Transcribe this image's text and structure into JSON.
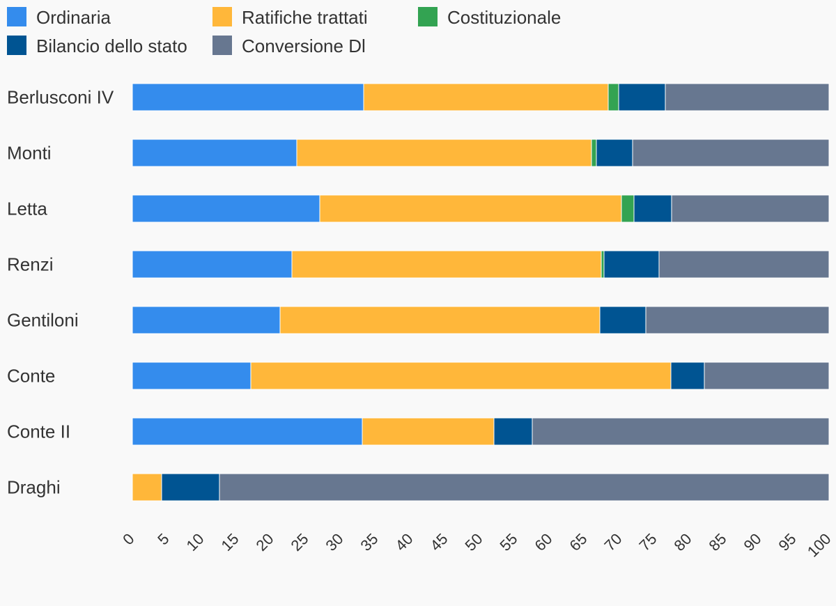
{
  "chart_data": {
    "type": "bar",
    "orientation": "horizontal",
    "stacked": true,
    "title": "",
    "xlabel": "",
    "ylabel": "",
    "xlim": [
      0,
      100
    ],
    "xticks": [
      "0",
      "5",
      "10",
      "15",
      "20",
      "25",
      "30",
      "35",
      "40",
      "45",
      "50",
      "55",
      "60",
      "65",
      "70",
      "75",
      "80",
      "85",
      "90",
      "95",
      "100"
    ],
    "grid": false,
    "legend_position": "top-left",
    "categories": [
      "Berlusconi IV",
      "Monti",
      "Letta",
      "Renzi",
      "Gentiloni",
      "Conte",
      "Conte II",
      "Draghi"
    ],
    "series": [
      {
        "name": "Ordinaria",
        "color": "#348ced",
        "values": [
          33.2,
          23.6,
          26.9,
          22.9,
          21.2,
          17.0,
          33.0,
          0
        ]
      },
      {
        "name": "Ratifiche trattati",
        "color": "#ffb73a",
        "values": [
          35.1,
          42.3,
          43.3,
          44.4,
          45.9,
          60.3,
          18.9,
          4.2
        ]
      },
      {
        "name": "Costituzionale",
        "color": "#33a352",
        "values": [
          1.5,
          0.7,
          1.8,
          0.4,
          0,
          0,
          0,
          0
        ]
      },
      {
        "name": "Bilancio dello stato",
        "color": "#005492",
        "values": [
          6.7,
          5.2,
          5.4,
          7.9,
          6.6,
          4.8,
          5.5,
          8.3
        ]
      },
      {
        "name": "Conversione Dl",
        "color": "#677790",
        "values": [
          23.5,
          28.2,
          22.6,
          24.4,
          26.3,
          17.9,
          42.6,
          87.5
        ]
      }
    ]
  }
}
